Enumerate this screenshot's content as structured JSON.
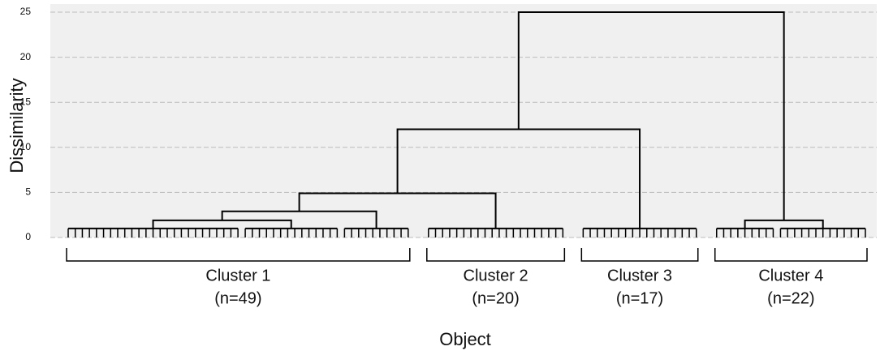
{
  "chart_data": {
    "type": "dendrogram",
    "ylabel": "Dissimilarity",
    "xlabel": "Object",
    "ylim": [
      0,
      25
    ],
    "yticks": [
      0,
      5,
      10,
      15,
      20,
      25
    ],
    "grid": true,
    "groups": [
      {
        "size": 25,
        "height": 1
      },
      {
        "size": 14,
        "height": 1
      },
      {
        "size": 10,
        "height": 1
      },
      {
        "size": 20,
        "height": 1
      },
      {
        "size": 17,
        "height": 1
      },
      {
        "size": 9,
        "height": 1
      },
      {
        "size": 13,
        "height": 1
      }
    ],
    "merges": [
      {
        "children": [
          0,
          1
        ],
        "height": 1.9
      },
      {
        "children": [
          7,
          2
        ],
        "height": 2.9
      },
      {
        "children": [
          8,
          3
        ],
        "height": 4.9
      },
      {
        "children": [
          5,
          6
        ],
        "height": 1.9
      },
      {
        "children": [
          9,
          4
        ],
        "height": 12
      },
      {
        "children": [
          11,
          10
        ],
        "height": 25
      }
    ],
    "clusters": [
      {
        "label": "Cluster 1",
        "n_label": "(n=49)",
        "groups": [
          0,
          1,
          2
        ]
      },
      {
        "label": "Cluster 2",
        "n_label": "(n=20)",
        "groups": [
          3
        ]
      },
      {
        "label": "Cluster 3",
        "n_label": "(n=17)",
        "groups": [
          4
        ]
      },
      {
        "label": "Cluster 4",
        "n_label": "(n=22)",
        "groups": [
          5,
          6
        ]
      }
    ]
  }
}
